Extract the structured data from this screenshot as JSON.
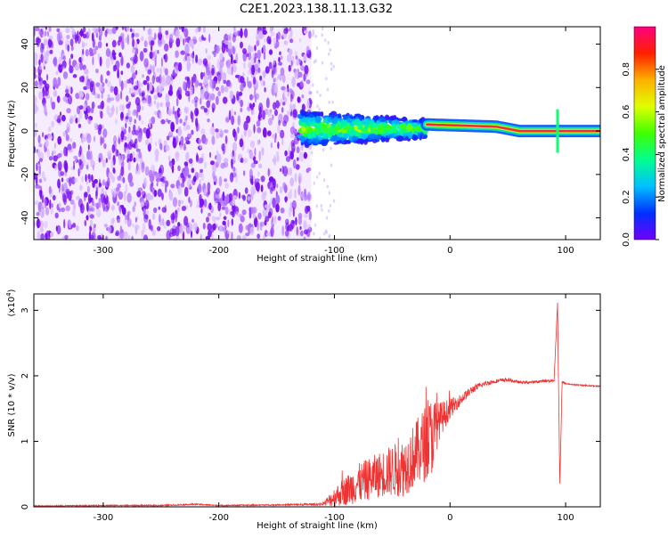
{
  "title": "C2E1.2023.138.11.13.G32",
  "colors": {
    "snr_line": "#ee3333",
    "frame": "#000000"
  },
  "chart_data": [
    {
      "type": "heatmap",
      "xlabel": "Height of straight line (km)",
      "ylabel": "Frequency (Hz)",
      "xlim": [
        -360,
        130
      ],
      "ylim": [
        -50,
        48
      ],
      "xticks": [
        -300,
        -200,
        -100,
        0,
        100
      ],
      "yticks": [
        -40,
        -20,
        0,
        20,
        40
      ],
      "colorbar": {
        "label": "Normalized spectral amplitude",
        "range": [
          0.0,
          1.0
        ],
        "ticks": [
          "0.0",
          "0.2",
          "0.4",
          "0.6",
          "0.8"
        ],
        "colormap": [
          "#7000ff",
          "#0030ff",
          "#00c0ff",
          "#00ff90",
          "#40ff00",
          "#e0ff00",
          "#ffb000",
          "#ff2000",
          "#ff0080"
        ]
      },
      "regions": [
        {
          "name": "diffuse noise",
          "x_range": [
            -360,
            -120
          ],
          "freq_range": [
            -50,
            48
          ],
          "amplitude": 0.1
        },
        {
          "name": "scintillating band",
          "x_range": [
            -130,
            -20
          ],
          "freq_range": [
            -8,
            8
          ],
          "amplitude": 0.45
        },
        {
          "name": "signal trace",
          "x_range": [
            -20,
            130
          ],
          "freq_center": [
            3,
            0
          ],
          "amplitude": 0.95
        }
      ]
    },
    {
      "type": "line",
      "xlabel": "Height of straight line (km)",
      "ylabel": "SNR (10 * v/v)",
      "scale_label": "(x10",
      "scale_exp": "4",
      "scale_close": ")",
      "xlim": [
        -360,
        130
      ],
      "ylim": [
        0,
        3.25
      ],
      "xticks": [
        -300,
        -200,
        -100,
        0,
        100
      ],
      "yticks": [
        0,
        1,
        2,
        3
      ],
      "series": [
        {
          "x": [
            -360,
            -300,
            -250,
            -220,
            -200,
            -150,
            -110,
            -100,
            -80,
            -60,
            -40,
            -30,
            -20,
            -15,
            -10,
            0,
            10,
            20,
            30,
            40,
            50,
            60,
            70,
            80,
            90,
            93,
            95,
            97,
            100,
            110,
            120,
            130
          ],
          "y": [
            0.01,
            0.02,
            0.02,
            0.04,
            0.02,
            0.03,
            0.04,
            0.15,
            0.35,
            0.5,
            0.6,
            0.8,
            1.0,
            1.1,
            1.3,
            1.5,
            1.65,
            1.8,
            1.88,
            1.92,
            1.94,
            1.9,
            1.9,
            1.92,
            1.93,
            3.1,
            0.35,
            1.9,
            1.88,
            1.86,
            1.85,
            1.84
          ],
          "noise": [
            0.01,
            0.01,
            0.01,
            0.01,
            0.01,
            0.01,
            0.02,
            0.15,
            0.3,
            0.35,
            0.45,
            0.5,
            0.6,
            0.6,
            0.3,
            0.15,
            0.08,
            0.06,
            0.04,
            0.03,
            0.03,
            0.02,
            0.02,
            0.02,
            0.02,
            0.02,
            0.02,
            0.02,
            0.01,
            0.01,
            0.01,
            0.01
          ]
        }
      ]
    }
  ]
}
